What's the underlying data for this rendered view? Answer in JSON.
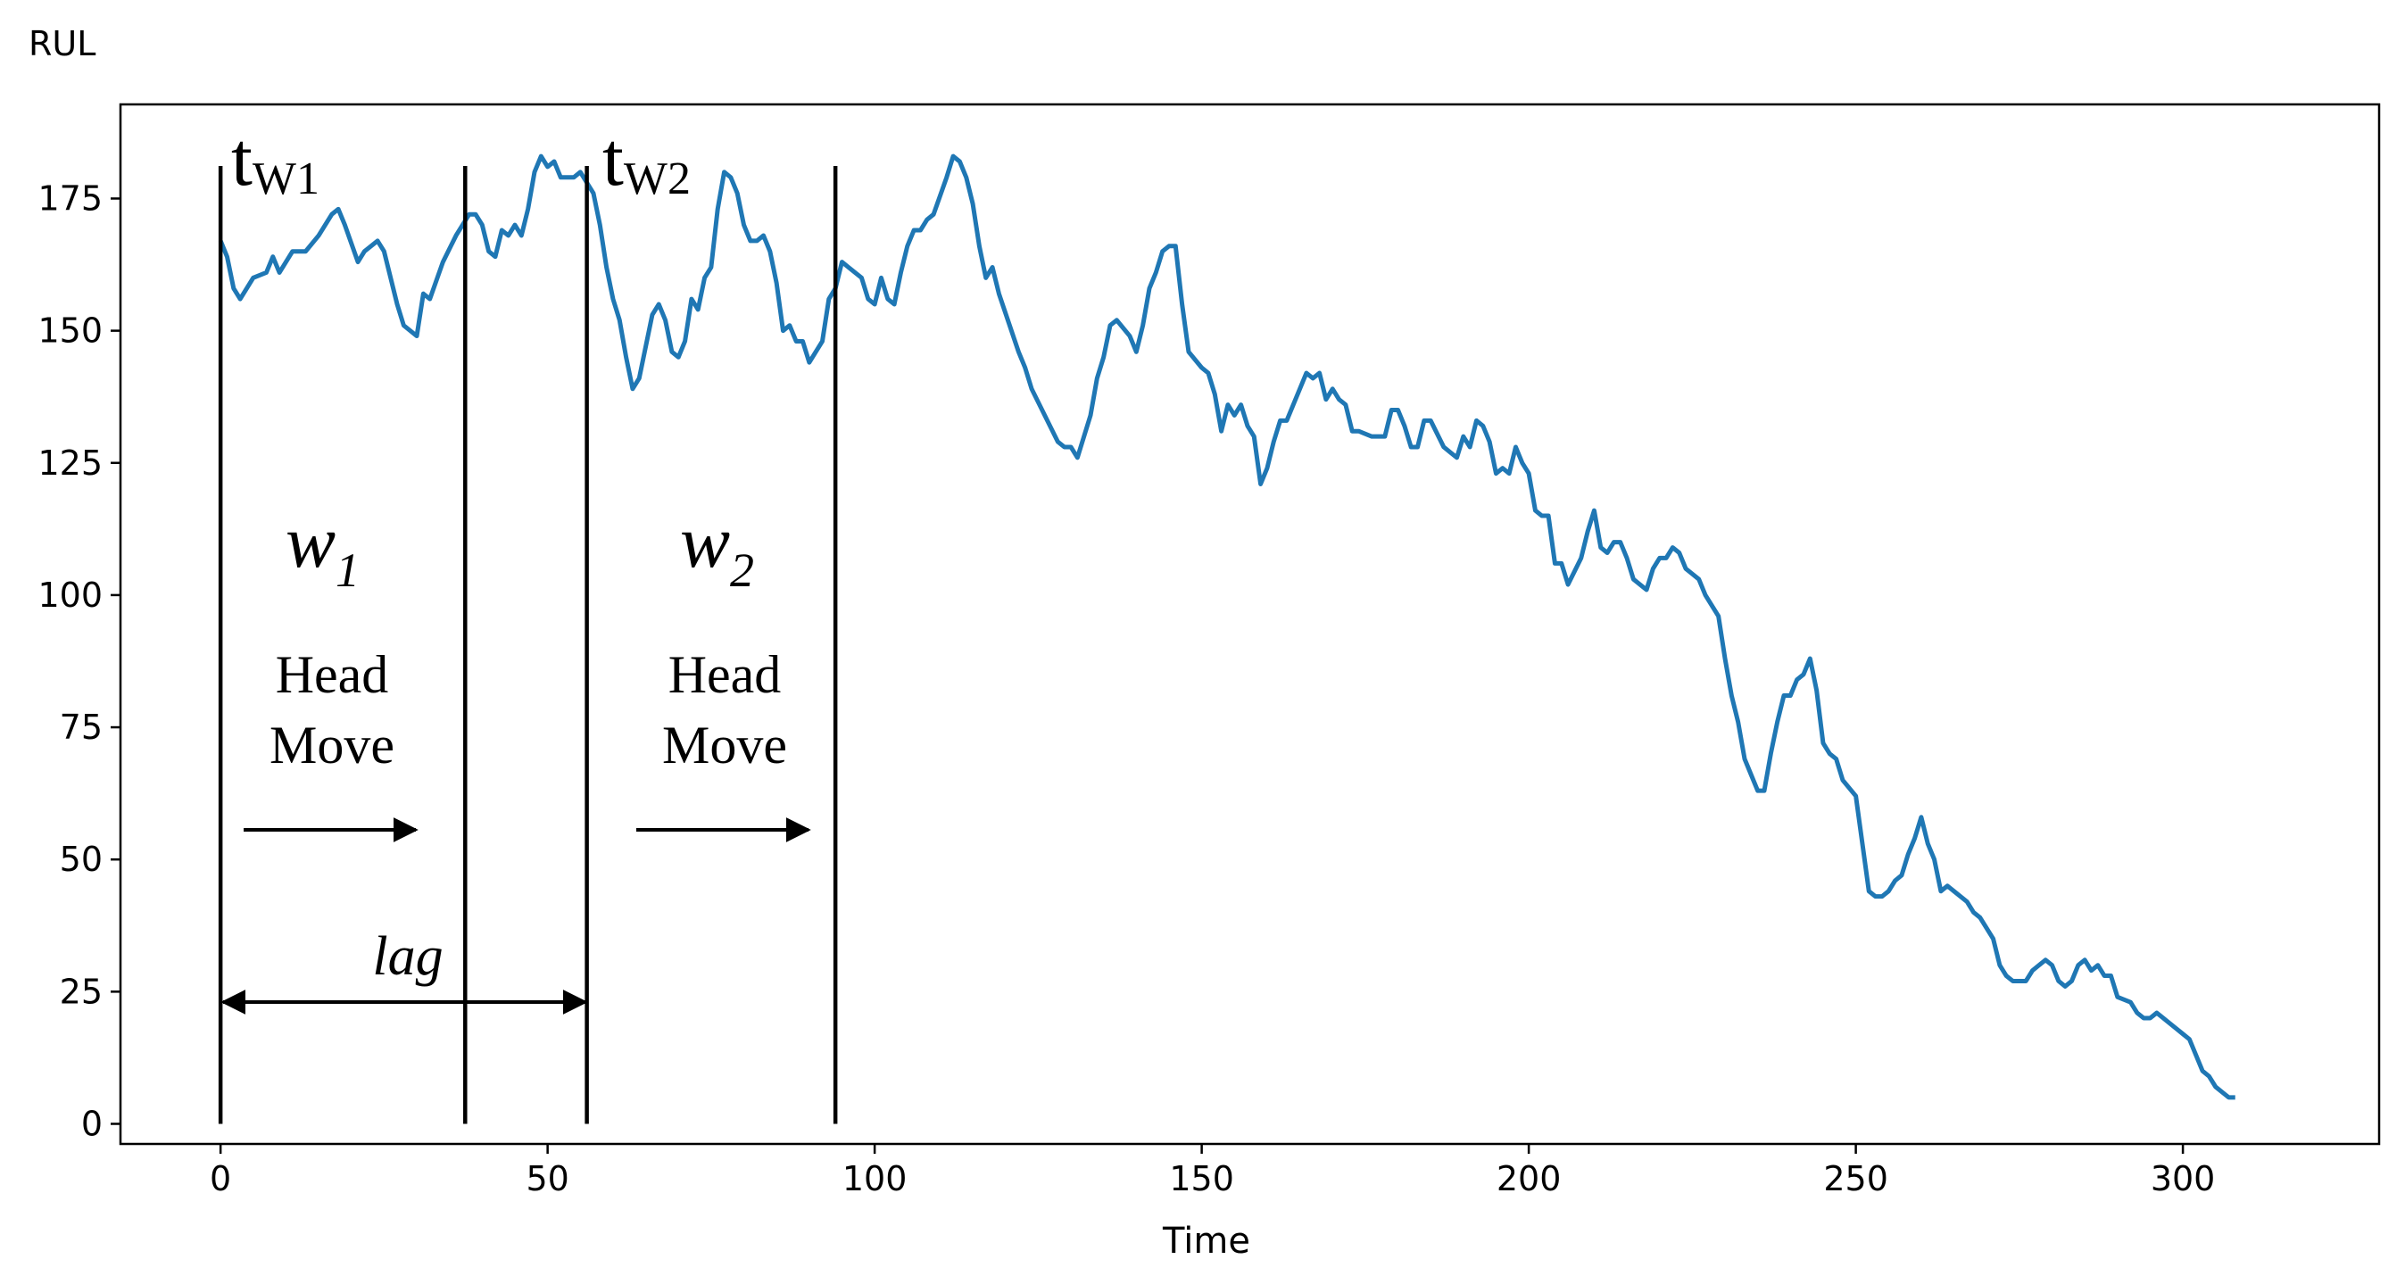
{
  "chart_data": {
    "type": "line",
    "ylabel": "RUL",
    "xlabel": "Time",
    "xlim": [
      -15.3,
      330
    ],
    "ylim": [
      -3.8,
      192.8
    ],
    "xticks": [
      0,
      50,
      100,
      150,
      200,
      250,
      300
    ],
    "yticks": [
      0,
      25,
      50,
      75,
      100,
      125,
      150,
      175
    ],
    "x": [
      0,
      1,
      2,
      3,
      5,
      7,
      8,
      9,
      11,
      13,
      15,
      17,
      18,
      19,
      21,
      22,
      24,
      25,
      26,
      27,
      28,
      30,
      31,
      32,
      34,
      36,
      38,
      39,
      40,
      41,
      42,
      43,
      44,
      45,
      46,
      47,
      48,
      49,
      50,
      51,
      52,
      54,
      55,
      56,
      57,
      58,
      59,
      60,
      61,
      62,
      63,
      64,
      65,
      66,
      67,
      68,
      69,
      70,
      71,
      72,
      73,
      74,
      75,
      76,
      77,
      78,
      79,
      80,
      81,
      82,
      83,
      84,
      85,
      86,
      87,
      88,
      89,
      90,
      92,
      93,
      94,
      95,
      96,
      98,
      99,
      100,
      101,
      102,
      103,
      104,
      105,
      106,
      107,
      108,
      109,
      111,
      112,
      113,
      114,
      115,
      116,
      117,
      118,
      119,
      122,
      123,
      124,
      126,
      128,
      129,
      130,
      131,
      133,
      134,
      135,
      136,
      137,
      139,
      140,
      141,
      142,
      143,
      144,
      145,
      146,
      147,
      148,
      150,
      151,
      152,
      153,
      154,
      155,
      156,
      157,
      158,
      159,
      160,
      161,
      162,
      163,
      164,
      166,
      167,
      168,
      169,
      170,
      171,
      172,
      173,
      174,
      176,
      178,
      179,
      180,
      181,
      182,
      183,
      184,
      185,
      187,
      188,
      189,
      190,
      191,
      192,
      193,
      194,
      195,
      196,
      197,
      198,
      199,
      200,
      201,
      202,
      203,
      204,
      205,
      206,
      208,
      209,
      210,
      211,
      212,
      213,
      214,
      215,
      216,
      217,
      218,
      219,
      220,
      221,
      222,
      223,
      224,
      225,
      226,
      227,
      229,
      230,
      231,
      232,
      233,
      234,
      235,
      236,
      237,
      238,
      239,
      240,
      241,
      242,
      243,
      244,
      245,
      246,
      247,
      248,
      250,
      251,
      252,
      253,
      254,
      255,
      256,
      257,
      258,
      259,
      260,
      261,
      262,
      263,
      264,
      265,
      267,
      268,
      269,
      271,
      272,
      273,
      274,
      276,
      277,
      279,
      280,
      281,
      282,
      283,
      284,
      285,
      286,
      287,
      288,
      289,
      290,
      292,
      293,
      294,
      295,
      296,
      297,
      299,
      300,
      301,
      302,
      303,
      304,
      305,
      306,
      307,
      308
    ],
    "series": [
      {
        "color": "#1f77b4",
        "values": [
          167,
          164,
          158,
          156,
          160,
          161,
          164,
          161,
          165,
          165,
          168,
          172,
          173,
          170,
          163,
          165,
          167,
          165,
          160,
          155,
          151,
          149,
          157,
          156,
          163,
          168,
          172,
          172,
          170,
          165,
          164,
          169,
          168,
          170,
          168,
          173,
          180,
          183,
          181,
          182,
          179,
          179,
          180,
          178,
          176,
          170,
          162,
          156,
          152,
          145,
          139,
          141,
          147,
          153,
          155,
          152,
          146,
          145,
          148,
          156,
          154,
          160,
          162,
          173,
          180,
          179,
          176,
          170,
          167,
          167,
          168,
          165,
          159,
          150,
          151,
          148,
          148,
          144,
          148,
          156,
          158,
          163,
          162,
          160,
          156,
          155,
          160,
          156,
          155,
          161,
          166,
          169,
          169,
          171,
          172,
          179,
          183,
          182,
          179,
          174,
          166,
          160,
          162,
          157,
          146,
          143,
          139,
          134,
          129,
          128,
          128,
          126,
          134,
          141,
          145,
          151,
          152,
          149,
          146,
          151,
          158,
          161,
          165,
          166,
          166,
          155,
          146,
          143,
          142,
          138,
          131,
          136,
          134,
          136,
          132,
          130,
          121,
          124,
          129,
          133,
          133,
          136,
          142,
          141,
          142,
          137,
          139,
          137,
          136,
          131,
          131,
          130,
          130,
          135,
          135,
          132,
          128,
          128,
          133,
          133,
          128,
          127,
          126,
          130,
          128,
          133,
          132,
          129,
          123,
          124,
          123,
          128,
          125,
          123,
          116,
          115,
          115,
          106,
          106,
          102,
          107,
          112,
          116,
          109,
          108,
          110,
          110,
          107,
          103,
          102,
          101,
          105,
          107,
          107,
          109,
          108,
          105,
          104,
          103,
          100,
          96,
          88,
          81,
          76,
          69,
          66,
          63,
          63,
          70,
          76,
          81,
          81,
          84,
          85,
          88,
          82,
          72,
          70,
          69,
          65,
          62,
          53,
          44,
          43,
          43,
          44,
          46,
          47,
          51,
          54,
          58,
          53,
          50,
          44,
          45,
          44,
          42,
          40,
          39,
          35,
          30,
          28,
          27,
          27,
          29,
          31,
          30,
          27,
          26,
          27,
          30,
          31,
          29,
          30,
          28,
          28,
          24,
          23,
          21,
          20,
          20,
          21,
          20,
          18,
          17,
          16,
          13,
          10,
          9,
          7,
          6,
          5,
          5
        ]
      }
    ],
    "markers": [
      0,
      37.4,
      56,
      94
    ],
    "annotations": {
      "t1": {
        "text": "t",
        "sub": "W1"
      },
      "t2": {
        "text": "t",
        "sub": "W2"
      },
      "w1": {
        "text": "w",
        "sub": "1"
      },
      "w2": {
        "text": "w",
        "sub": "2"
      },
      "move1": [
        "Head",
        "Move"
      ],
      "move2": [
        "Head",
        "Move"
      ],
      "lag": "lag"
    }
  }
}
